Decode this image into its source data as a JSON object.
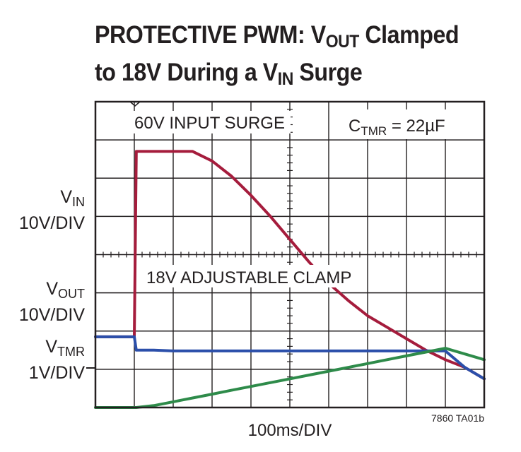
{
  "title": {
    "line1_prefix": "PROTECTIVE PWM: V",
    "line1_sub": "OUT",
    "line1_suffix": " Clamped",
    "line2_prefix": "to 18V During a V",
    "line2_sub": "IN",
    "line2_suffix": " Surge"
  },
  "channels": [
    {
      "name": "V",
      "sub": "IN",
      "scale": "10V/DIV",
      "color": "#a51c3c"
    },
    {
      "name": "V",
      "sub": "OUT",
      "scale": "10V/DIV",
      "color": "#2b4faa"
    },
    {
      "name": "V",
      "sub": "TMR",
      "scale": "1V/DIV",
      "color": "#2e8b4a"
    }
  ],
  "annotations": {
    "input_surge": "60V INPUT SURGE",
    "clamp": "18V ADJUSTABLE CLAMP",
    "ctmr_name": "C",
    "ctmr_sub": "TMR",
    "ctmr_value": " = 22µF"
  },
  "x_scale": "100ms/DIV",
  "figure_id": "7860 TA01b",
  "chart_data": {
    "type": "line",
    "grid": true,
    "x_divisions": 10,
    "y_divisions": 8,
    "xlabel": "100ms/DIV",
    "x": [
      0,
      0.45,
      0.95,
      1.0,
      1.05,
      1.5,
      2.0,
      2.5,
      3.0,
      3.5,
      4.0,
      4.5,
      5.0,
      5.5,
      6.0,
      6.5,
      7.0,
      7.5,
      8.0,
      8.5,
      9.0,
      9.5,
      10.0
    ],
    "series": [
      {
        "name": "VIN",
        "color": "#a51c3c",
        "values": [
          6.15,
          6.15,
          6.15,
          6.15,
          1.3,
          1.3,
          1.3,
          1.3,
          1.55,
          1.95,
          2.45,
          3.0,
          3.6,
          4.2,
          4.75,
          5.2,
          5.6,
          5.9,
          6.2,
          6.5,
          6.75,
          6.95,
          7.25
        ]
      },
      {
        "name": "VOUT",
        "color": "#2b4faa",
        "values": [
          6.15,
          6.15,
          6.15,
          6.15,
          6.5,
          6.5,
          6.52,
          6.52,
          6.52,
          6.52,
          6.52,
          6.52,
          6.52,
          6.52,
          6.52,
          6.52,
          6.52,
          6.52,
          6.52,
          6.52,
          6.52,
          6.95,
          7.25
        ]
      },
      {
        "name": "VTMR",
        "color": "#2e8b4a",
        "values": [
          8.0,
          8.0,
          8.0,
          8.0,
          8.0,
          7.95,
          7.85,
          7.75,
          7.65,
          7.55,
          7.45,
          7.35,
          7.25,
          7.15,
          7.05,
          6.95,
          6.85,
          6.75,
          6.65,
          6.55,
          6.45,
          6.6,
          6.75
        ]
      }
    ]
  }
}
